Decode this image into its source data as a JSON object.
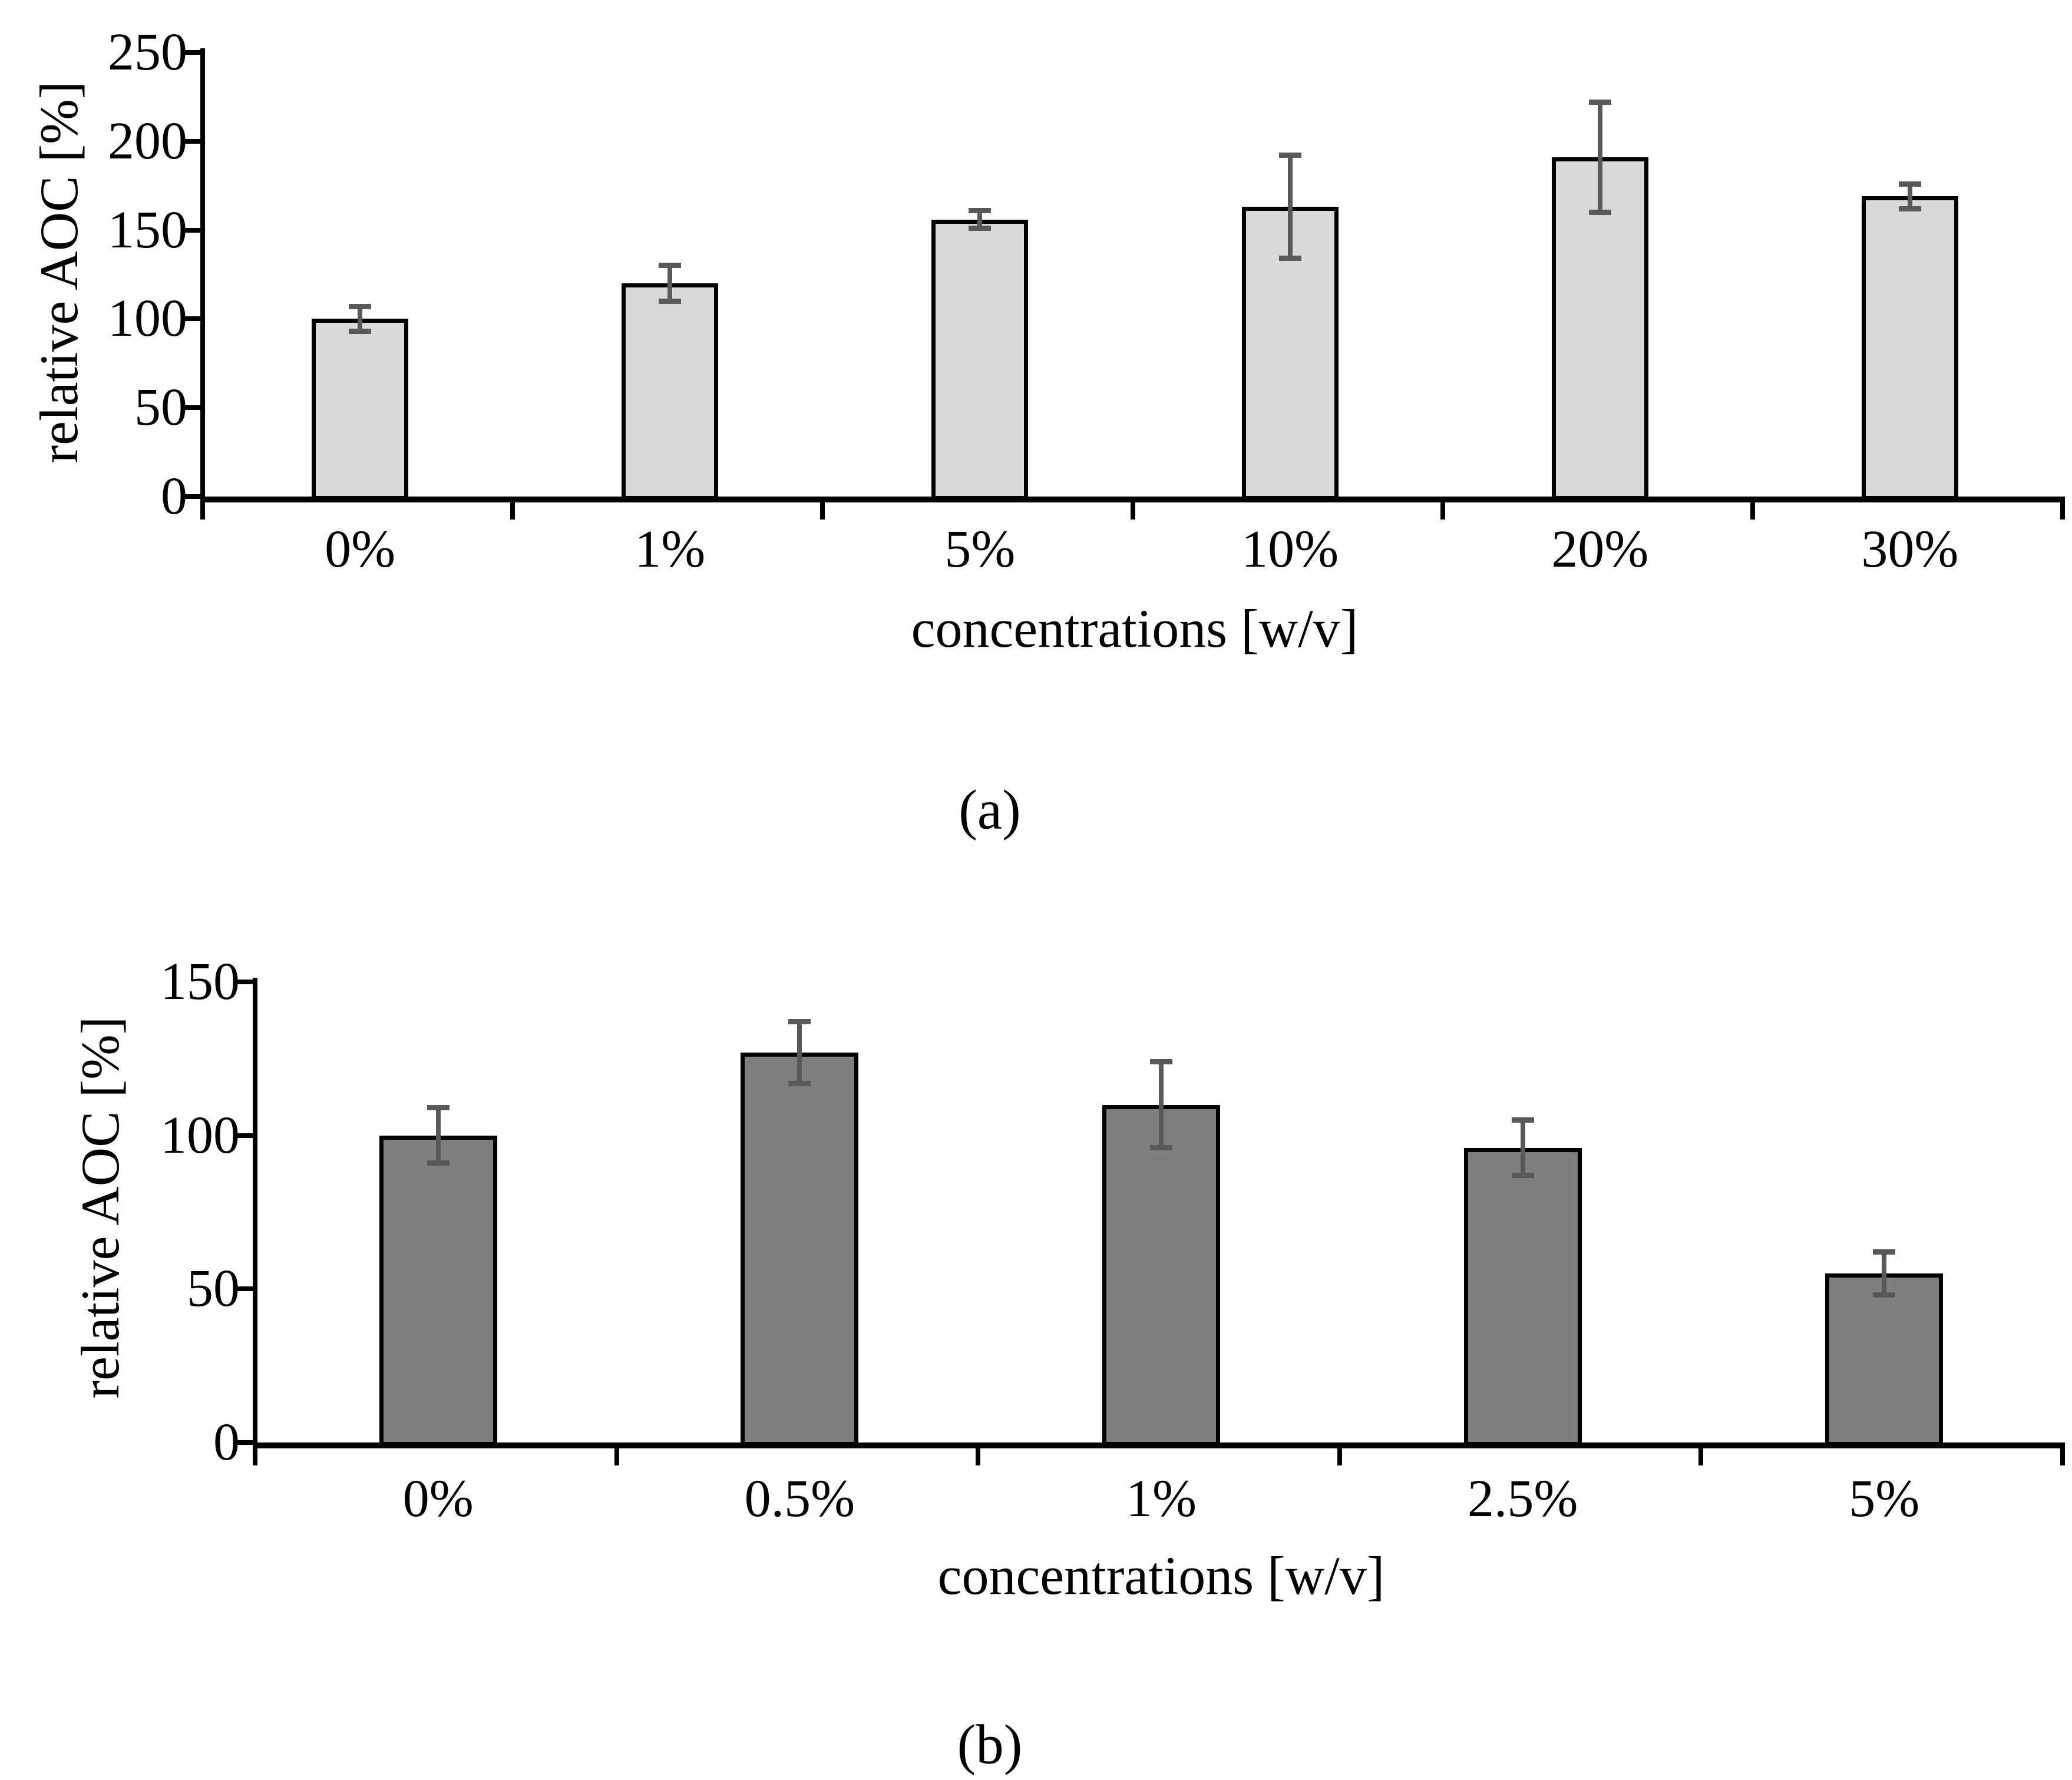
{
  "chart_data": [
    {
      "type": "bar",
      "panel": "(a)",
      "title": "",
      "categories": [
        "0%",
        "1%",
        "5%",
        "10%",
        "20%",
        "30%"
      ],
      "values": [
        100,
        120,
        156,
        163,
        191,
        169
      ],
      "errors": [
        7,
        10,
        5,
        29,
        31,
        7
      ],
      "xlabel": "concentrations [w/v]",
      "ylabel": "relative AOC [%]",
      "ylim": [
        0,
        250
      ],
      "y_ticks": [
        0,
        50,
        100,
        150,
        200,
        250
      ],
      "grid": false,
      "legend": "none",
      "bar_color": "#d9d9d9",
      "bar_border_color": "#000000",
      "error_bar_color": "#595959"
    },
    {
      "type": "bar",
      "panel": "(b)",
      "title": "",
      "categories": [
        "0%",
        "0.5%",
        "1%",
        "2.5%",
        "5%"
      ],
      "values": [
        100,
        127,
        110,
        96,
        55
      ],
      "errors": [
        9,
        10,
        14,
        9,
        7
      ],
      "xlabel": "concentrations [w/v]",
      "ylabel": "relative AOC [%]",
      "ylim": [
        0,
        150
      ],
      "y_ticks": [
        0,
        50,
        100,
        150
      ],
      "grid": false,
      "legend": "none",
      "bar_color": "#7f7f7f",
      "bar_border_color": "#000000",
      "error_bar_color": "#595959"
    }
  ]
}
